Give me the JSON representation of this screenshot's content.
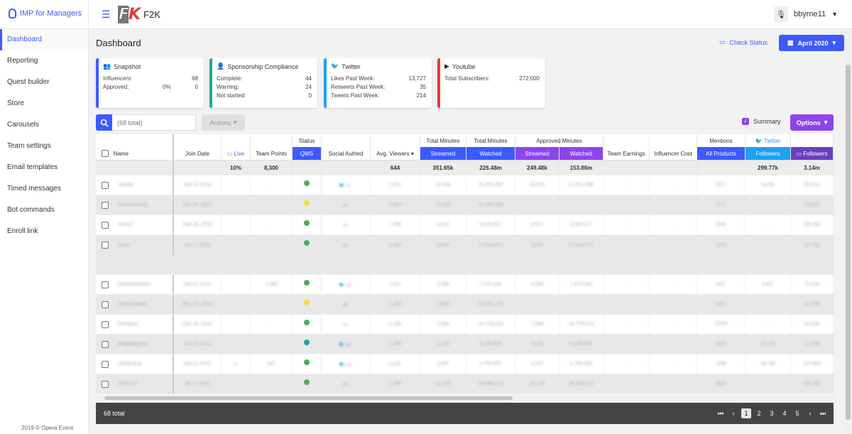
{
  "app": {
    "brand": "IMP for Managers",
    "logo_mark_f": "F",
    "logo_mark_k": "K",
    "logo_name": "F2K",
    "user_name": "bbyrne11",
    "copyright": "2019 © Opera Event"
  },
  "sidebar": {
    "items": [
      {
        "label": "Dashboard",
        "active": true
      },
      {
        "label": "Reporting"
      },
      {
        "label": "Quest builder"
      },
      {
        "label": "Store"
      },
      {
        "label": "Carousels"
      },
      {
        "label": "Team settings"
      },
      {
        "label": "Email templates"
      },
      {
        "label": "Timed messages"
      },
      {
        "label": "Bot commands"
      },
      {
        "label": "Enroll link"
      }
    ]
  },
  "header": {
    "title": "Dashboard",
    "check_status": "Check Status",
    "date": "April 2020"
  },
  "cards": {
    "snapshot": {
      "title": "Snapshot",
      "rows": [
        [
          "Influencers:",
          "",
          "68"
        ],
        [
          "Approved:",
          "0%",
          "0"
        ]
      ]
    },
    "sponsorship": {
      "title": "Sponsorship Compliance",
      "rows": [
        [
          "Complete:",
          "44"
        ],
        [
          "Warning:",
          "24"
        ],
        [
          "Not started:",
          "0"
        ]
      ]
    },
    "twitter": {
      "title": "Twitter",
      "rows": [
        [
          "Likes Past Week:",
          "13,727"
        ],
        [
          "Retweets Past Week:",
          "35"
        ],
        [
          "Tweets Past Week:",
          "214"
        ]
      ]
    },
    "youtube": {
      "title": "Youtube",
      "rows": [
        [
          "Total Subscribers:",
          "272,000"
        ]
      ]
    }
  },
  "colors": {
    "blue": "#3d5afe",
    "purple": "#8e44ec",
    "green": "#4caf50",
    "teal": "#26a69a",
    "red": "#e53935",
    "twitter": "#1da1f2"
  },
  "toolbar": {
    "search_placeholder": "(68 total)",
    "actions": "Actions",
    "summary": "Summary",
    "options": "Options"
  },
  "table": {
    "group_headers": {
      "status": "Status",
      "total_min_1": "Total Minutes",
      "total_min_2": "Total Minutes",
      "approved_min": "Approved Minutes",
      "mentions": "Mentions",
      "twitter": "Twitter"
    },
    "columns": {
      "name": "Name",
      "join_date": "Join Date",
      "live": "Live",
      "team_points": "Team Points",
      "qms": "QMS",
      "social_authed": "Social Authed",
      "avg_viewers": "Avg. Viewers",
      "streamed": "Streamed",
      "watched": "Watched",
      "appr_streamed": "Streamed",
      "appr_watched": "Watched",
      "team_earnings": "Team Earnings",
      "influencer_cost": "Influencer Cost",
      "all_products": "All Products",
      "followers_tw": "Followers",
      "followers_twitch": "Followers"
    },
    "summary": {
      "live": "10%",
      "team_points": "8,300",
      "avg_viewers": "644",
      "streamed": "351.65k",
      "watched": "226.48m",
      "appr_streamed": "249.48k",
      "appr_watched": "153.86m",
      "followers_tw": "299.77k",
      "followers_twitch": "3.14m"
    },
    "rows": [
      {
        "name": "cristopi",
        "join": "Nov 9, 2019",
        "points": "-",
        "qms": "green",
        "social": "tw tv",
        "viewers": "2,091",
        "streamed": "10,045",
        "watched": "21,651,658",
        "ast": "10,045",
        "awa": "21,651,658",
        "earn": "-",
        "cost": "-",
        "ment": "0/77",
        "ftw": "9,433",
        "ftv": "96,101"
      },
      {
        "name": "lookswecords",
        "join": "Jan 20, 2020",
        "points": "-",
        "qms": "yellow",
        "social": "tv",
        "viewers": "2,054",
        "streamed": "10,035",
        "watched": "21,050,044",
        "ast": "-",
        "awa": "-",
        "earn": "-",
        "cost": "-",
        "ment": "0/77",
        "ftw": "-",
        "ftv": "26,030"
      },
      {
        "name": "Rexi37",
        "join": "Feb 28, 2019",
        "points": "-",
        "qms": "green",
        "social": "tv",
        "viewers": "1,090",
        "streamed": "4,612",
        "watched": "9,345,517",
        "ast": "4,612",
        "awa": "9,345,517",
        "earn": "-",
        "cost": "-",
        "ment": "0/56",
        "ftw": "-",
        "ftv": "155,462"
      },
      {
        "name": "Jodin",
        "join": "Jan 1, 2019",
        "points": "-",
        "qms": "green",
        "social": "tv",
        "viewers": "1,060",
        "streamed": "9,605",
        "watched": "17,619,071",
        "ast": "9,605",
        "awa": "17,619,071",
        "earn": "-",
        "cost": "-",
        "ment": "0/70",
        "ftw": "-",
        "ftv": "62,709",
        "tall": true
      },
      {
        "name": "DuskyArdeMitz",
        "join": "Nov 9, 2019",
        "points": "1,090",
        "qms": "green",
        "social": "tw tv",
        "viewers": "1,617",
        "streamed": "4,099",
        "watched": "7,375,204",
        "ast": "4,099",
        "awa": "7,375,204",
        "earn": "-",
        "cost": "-",
        "ment": "0/37",
        "ftw": "5,657",
        "ftv": "75,034"
      },
      {
        "name": "Jeffmoryland",
        "join": "May 12, 2019",
        "points": "-",
        "qms": "yellow",
        "social": "tv",
        "viewers": "1,060",
        "streamed": "3,699",
        "watched": "10,051,178",
        "ast": "-",
        "awa": "-",
        "earn": "-",
        "cost": "-",
        "ment": "0/51",
        "ftw": "-",
        "ftv": "37,766"
      },
      {
        "name": "Fleridass",
        "join": "Dec 26, 2018",
        "points": "-",
        "qms": "green",
        "social": "tv",
        "viewers": "1,196",
        "streamed": "7,099",
        "watched": "16,775,213",
        "ast": "7,099",
        "awa": "16,775,213",
        "earn": "-",
        "cost": "-",
        "ment": "05/55",
        "ftw": "-",
        "ftv": "64,049"
      },
      {
        "name": "MegaMrgona",
        "join": "Nov 9, 2019",
        "points": "-",
        "qms": "teal",
        "social": "tw tv",
        "viewers": "1,060",
        "streamed": "3,226",
        "watched": "5,338,805",
        "ast": "3,226",
        "awa": "5,338,805",
        "earn": "-",
        "cost": "-",
        "ment": "0/54",
        "ftw": "10,132",
        "ftv": "37,040"
      },
      {
        "name": "JilledIneria",
        "join": "Nov 9, 2019",
        "points": "305",
        "qms": "green",
        "social": "tw tv",
        "viewers": "1,131",
        "streamed": "4,207",
        "watched": "4,755,555",
        "ast": "4,207",
        "awa": "4,755,555",
        "earn": "-",
        "cost": "-",
        "ment": "0/46",
        "ftw": "28,786",
        "ftv": "157,655",
        "live": true
      },
      {
        "name": "PoliesTV",
        "join": "Jan 1, 2019",
        "points": "-",
        "qms": "green",
        "social": "tv",
        "viewers": "1,060",
        "streamed": "10,130",
        "watched": "19,588,013",
        "ast": "10,130",
        "awa": "19,588,013",
        "earn": "-",
        "cost": "-",
        "ment": "0/80",
        "ftw": "-",
        "ftv": "155,897"
      }
    ]
  },
  "footer": {
    "total": "68 total",
    "pages": [
      "1",
      "2",
      "3",
      "4",
      "5"
    ],
    "current_page": "1",
    "first": "⏮",
    "prev": "‹",
    "next": "›",
    "last": "⏭"
  }
}
